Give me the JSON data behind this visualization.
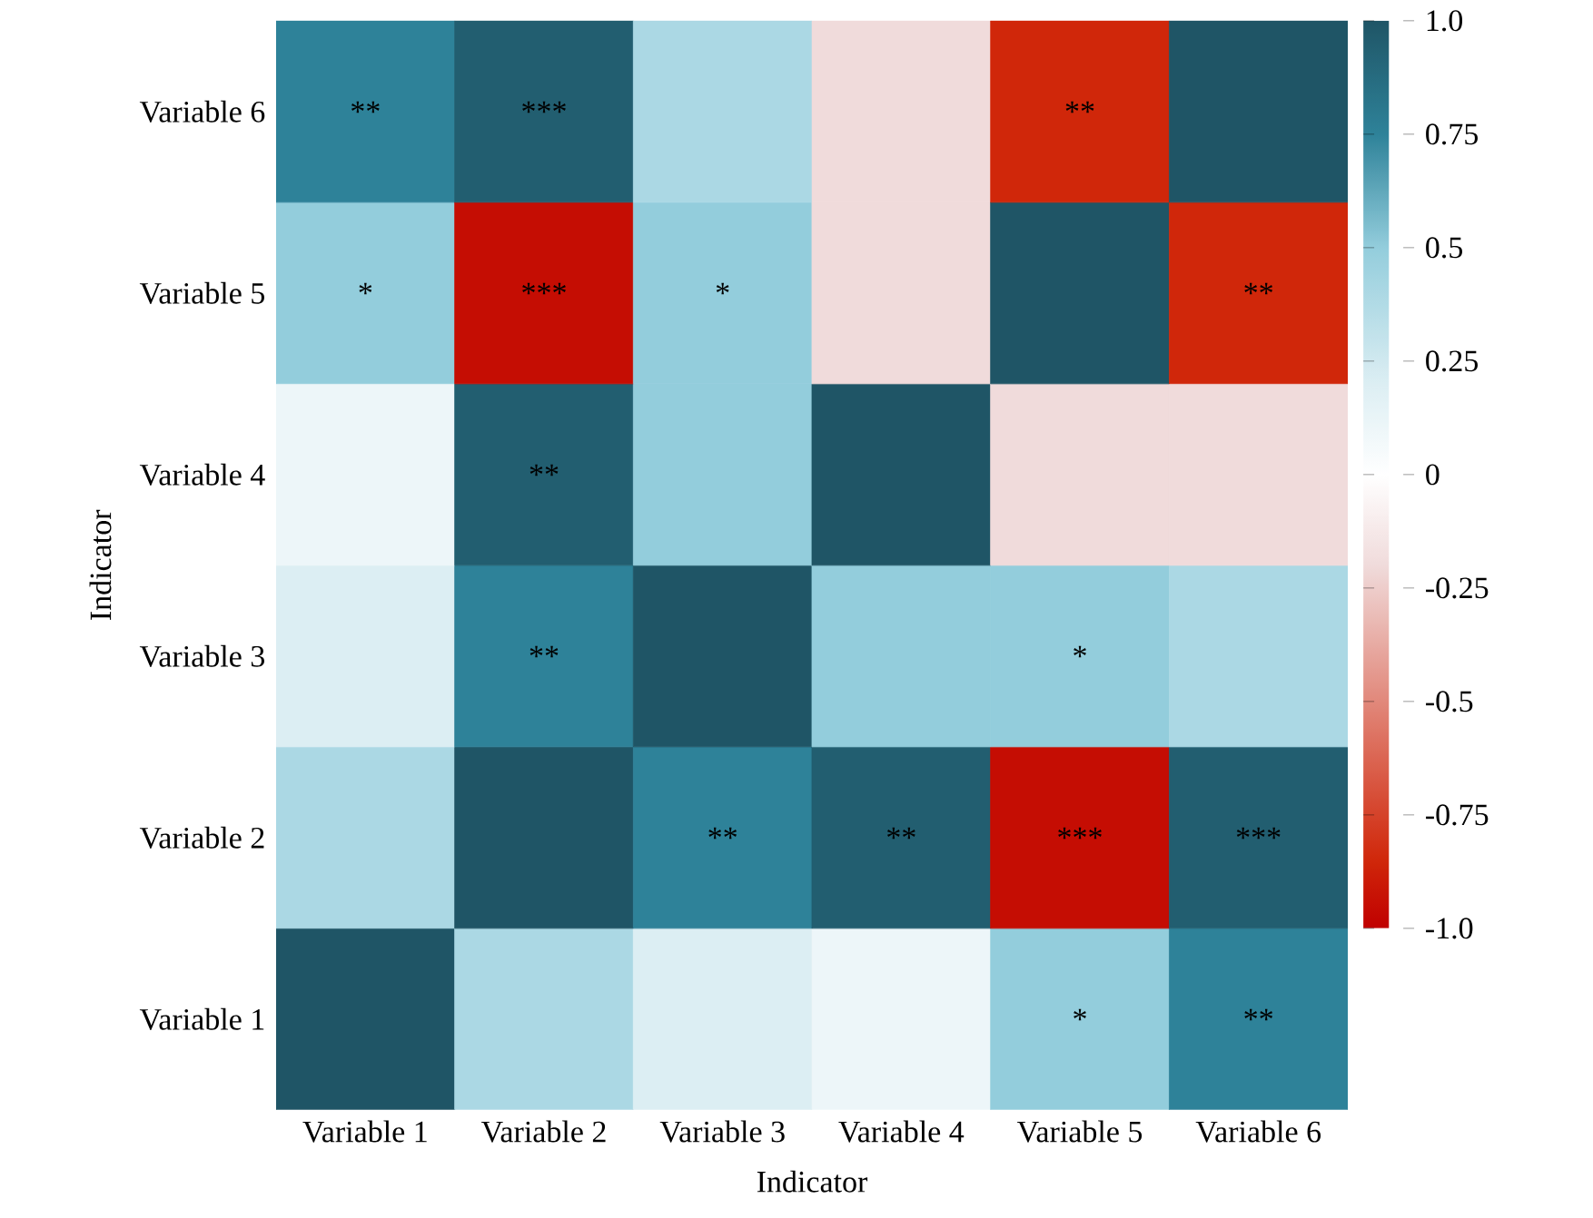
{
  "chart_data": {
    "type": "heatmap",
    "xlabel": "Indicator",
    "ylabel": "Indicator",
    "categories": [
      "Variable 1",
      "Variable 2",
      "Variable 3",
      "Variable 4",
      "Variable 5",
      "Variable 6"
    ],
    "y_categories": [
      "Variable 6",
      "Variable 5",
      "Variable 4",
      "Variable 3",
      "Variable 2",
      "Variable 1"
    ],
    "cells": [
      [
        0.75,
        0.95,
        0.4,
        -0.2,
        -0.85,
        1
      ],
      [
        0.5,
        -0.95,
        0.5,
        -0.2,
        1,
        -0.85
      ],
      [
        0.1,
        0.95,
        0.5,
        1,
        -0.2,
        -0.2
      ],
      [
        0.2,
        0.75,
        1,
        0.5,
        0.5,
        0.4
      ],
      [
        0.4,
        1,
        0.75,
        0.95,
        -0.95,
        0.95
      ],
      [
        1,
        0.4,
        0.2,
        0.1,
        0.5,
        0.75
      ]
    ],
    "cell_labels": [
      [
        "**",
        "***",
        null,
        null,
        "**",
        null
      ],
      [
        "*",
        "***",
        "*",
        null,
        null,
        "**"
      ],
      [
        null,
        "**",
        null,
        null,
        null,
        null
      ],
      [
        null,
        "**",
        null,
        null,
        "*",
        null
      ],
      [
        null,
        null,
        "**",
        "**",
        "***",
        "***"
      ],
      [
        null,
        null,
        null,
        null,
        "*",
        "**"
      ]
    ],
    "clim": [
      -1,
      1
    ],
    "cticks": [
      {
        "value": -1,
        "label": "-1.0"
      },
      -0.75,
      -0.5,
      -0.25,
      0,
      0.25,
      0.5,
      0.75,
      {
        "value": 1,
        "label": "1.0"
      }
    ]
  }
}
